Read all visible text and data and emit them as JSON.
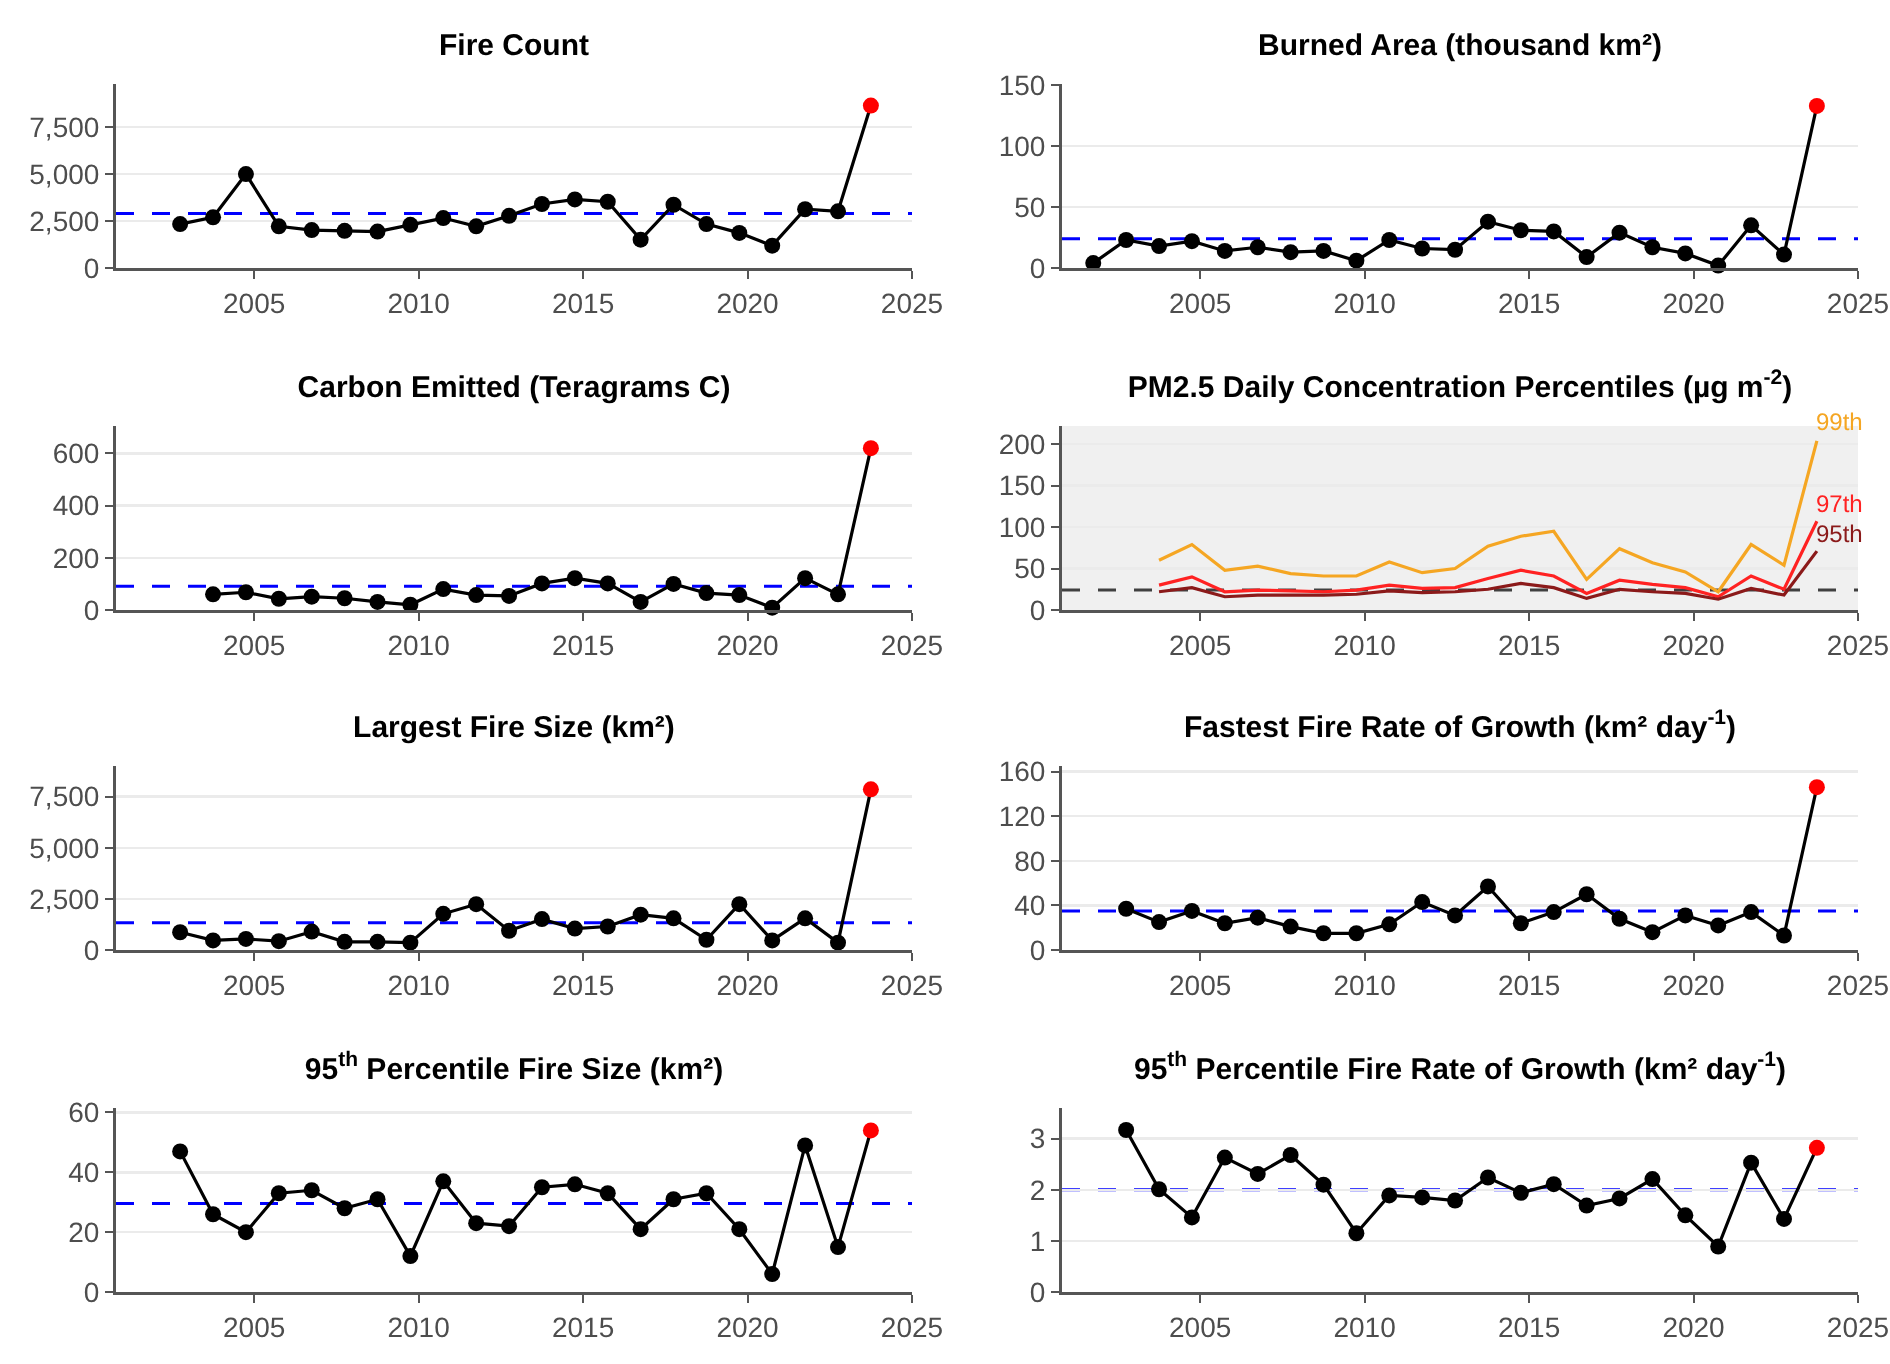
{
  "chart_data": [
    {
      "type": "line",
      "title": "Fire Count",
      "marker": "circle",
      "grid": "y",
      "legend": false,
      "xlim": [
        2000.8,
        2025
      ],
      "xticks": [
        2005,
        2010,
        2015,
        2020,
        2025
      ],
      "ylim": [
        0,
        9800
      ],
      "yticks": [
        0,
        {
          "value": 2500,
          "label": "2,500"
        },
        {
          "value": 5000,
          "label": "5,000"
        },
        {
          "value": 7500,
          "label": "7,500"
        }
      ],
      "ref_lines": [
        {
          "axis": "y",
          "value": 2900,
          "color": "#0000ff",
          "line_style": "dashed"
        }
      ],
      "series": [
        {
          "color": "#000000",
          "x": [
            2002.75,
            2003.75,
            2004.75,
            2005.75,
            2006.75,
            2007.75,
            2008.75,
            2009.75,
            2010.75,
            2011.75,
            2012.75,
            2013.75,
            2014.75,
            2015.75,
            2016.75,
            2017.75,
            2018.75,
            2019.75,
            2020.75,
            2021.75,
            2022.75,
            2023.75
          ],
          "values": [
            2340,
            2700,
            5000,
            2220,
            2020,
            1980,
            1940,
            2300,
            2660,
            2220,
            2780,
            3410,
            3650,
            3530,
            1510,
            3370,
            2340,
            1870,
            1190,
            3130,
            3020,
            8650
          ],
          "colors": [
            "#000000",
            "#000000",
            "#000000",
            "#000000",
            "#000000",
            "#000000",
            "#000000",
            "#000000",
            "#000000",
            "#000000",
            "#000000",
            "#000000",
            "#000000",
            "#000000",
            "#000000",
            "#000000",
            "#000000",
            "#000000",
            "#000000",
            "#000000",
            "#000000",
            "#ff0000"
          ]
        }
      ]
    },
    {
      "type": "line",
      "title": "Burned Area (thousand km²)",
      "marker": "circle",
      "grid": "y",
      "legend": false,
      "xlim": [
        2000.8,
        2025
      ],
      "xticks": [
        2005,
        2010,
        2015,
        2020,
        2025
      ],
      "ylim": [
        0,
        151
      ],
      "yticks": [
        0,
        50,
        100,
        150
      ],
      "ref_lines": [
        {
          "axis": "y",
          "value": 24,
          "color": "#0000ff",
          "line_style": "dashed"
        }
      ],
      "series": [
        {
          "color": "#000000",
          "x": [
            2001.75,
            2002.75,
            2003.75,
            2004.75,
            2005.75,
            2006.75,
            2007.75,
            2008.75,
            2009.75,
            2010.75,
            2011.75,
            2012.75,
            2013.75,
            2014.75,
            2015.75,
            2016.75,
            2017.75,
            2018.75,
            2019.75,
            2020.75,
            2021.75,
            2022.75,
            2023.75
          ],
          "values": [
            4,
            23,
            18,
            22,
            14,
            17,
            13,
            14,
            6,
            23,
            16,
            15,
            38,
            31,
            30,
            9,
            29,
            17,
            12,
            2,
            35,
            11,
            133
          ],
          "colors": [
            "#000000",
            "#000000",
            "#000000",
            "#000000",
            "#000000",
            "#000000",
            "#000000",
            "#000000",
            "#000000",
            "#000000",
            "#000000",
            "#000000",
            "#000000",
            "#000000",
            "#000000",
            "#000000",
            "#000000",
            "#000000",
            "#000000",
            "#000000",
            "#000000",
            "#000000",
            "#ff0000"
          ]
        }
      ]
    },
    {
      "type": "line",
      "title": "Carbon Emitted (Teragrams C)",
      "marker": "circle",
      "grid": "y",
      "legend": false,
      "xlim": [
        2000.8,
        2025
      ],
      "xticks": [
        2005,
        2010,
        2015,
        2020,
        2025
      ],
      "ylim": [
        0,
        705
      ],
      "yticks": [
        0,
        200,
        400,
        600
      ],
      "ref_lines": [
        {
          "axis": "y",
          "value": 91,
          "color": "#0000ff",
          "line_style": "dashed"
        }
      ],
      "series": [
        {
          "color": "#000000",
          "x": [
            2003.75,
            2004.75,
            2005.75,
            2006.75,
            2007.75,
            2008.75,
            2009.75,
            2010.75,
            2011.75,
            2012.75,
            2013.75,
            2014.75,
            2015.75,
            2016.75,
            2017.75,
            2018.75,
            2019.75,
            2020.75,
            2021.75,
            2022.75,
            2023.75
          ],
          "values": [
            60,
            68,
            43,
            51,
            45,
            31,
            20,
            80,
            57,
            54,
            102,
            122,
            102,
            31,
            100,
            65,
            57,
            9,
            122,
            60,
            620
          ],
          "colors": [
            "#000000",
            "#000000",
            "#000000",
            "#000000",
            "#000000",
            "#000000",
            "#000000",
            "#000000",
            "#000000",
            "#000000",
            "#000000",
            "#000000",
            "#000000",
            "#000000",
            "#000000",
            "#000000",
            "#000000",
            "#000000",
            "#000000",
            "#000000",
            "#ff0000"
          ]
        }
      ]
    },
    {
      "type": "line",
      "title": "PM2.5 Daily Concentration Percentiles (µg m$^{-2}$)",
      "marker": "none",
      "grid": "y",
      "legend": false,
      "xlim": [
        2000.8,
        2025
      ],
      "xticks": [
        2005,
        2010,
        2015,
        2020,
        2025
      ],
      "ylim": [
        0,
        222
      ],
      "yticks": [
        0,
        50,
        100,
        150,
        200
      ],
      "bands": [
        {
          "axis": "y",
          "from": 0,
          "to": 222,
          "color": "#f0f0f0"
        }
      ],
      "ref_lines": [
        {
          "axis": "y",
          "value": 24,
          "color": "#404040",
          "line_style": "dashed"
        }
      ],
      "series": [
        {
          "name": "99th",
          "color": "#f5a623",
          "x": [
            2003.75,
            2004.75,
            2005.75,
            2006.75,
            2007.75,
            2008.75,
            2009.75,
            2010.75,
            2011.75,
            2012.75,
            2013.75,
            2014.75,
            2015.75,
            2016.75,
            2017.75,
            2018.75,
            2019.75,
            2020.75,
            2021.75,
            2022.75,
            2023.75
          ],
          "values": [
            60,
            79,
            48,
            53,
            44,
            41,
            41,
            58,
            45,
            50,
            77,
            89,
            95,
            37,
            74,
            57,
            46,
            22,
            79,
            54,
            204
          ]
        },
        {
          "name": "97th",
          "color": "#ff2222",
          "x": [
            2003.75,
            2004.75,
            2005.75,
            2006.75,
            2007.75,
            2008.75,
            2009.75,
            2010.75,
            2011.75,
            2012.75,
            2013.75,
            2014.75,
            2015.75,
            2016.75,
            2017.75,
            2018.75,
            2019.75,
            2020.75,
            2021.75,
            2022.75,
            2023.75
          ],
          "values": [
            30,
            40,
            22,
            24,
            23,
            22,
            24,
            30,
            26,
            27,
            38,
            48,
            41,
            20,
            36,
            31,
            27,
            16,
            41,
            25,
            107
          ]
        },
        {
          "name": "95th",
          "color": "#8b1a1a",
          "x": [
            2003.75,
            2004.75,
            2005.75,
            2006.75,
            2007.75,
            2008.75,
            2009.75,
            2010.75,
            2011.75,
            2012.75,
            2013.75,
            2014.75,
            2015.75,
            2016.75,
            2017.75,
            2018.75,
            2019.75,
            2020.75,
            2021.75,
            2022.75,
            2023.75
          ],
          "values": [
            22,
            27,
            16,
            18,
            18,
            18,
            19,
            23,
            21,
            22,
            25,
            32,
            27,
            14,
            25,
            22,
            20,
            13,
            26,
            18,
            71
          ]
        }
      ]
    },
    {
      "type": "line",
      "title": "Largest Fire Size (km²)",
      "marker": "circle",
      "grid": "y",
      "legend": false,
      "xlim": [
        2000.8,
        2025
      ],
      "xticks": [
        2005,
        2010,
        2015,
        2020,
        2025
      ],
      "ylim": [
        0,
        9000
      ],
      "yticks": [
        0,
        {
          "value": 2500,
          "label": "2,500"
        },
        {
          "value": 5000,
          "label": "5,000"
        },
        {
          "value": 7500,
          "label": "7,500"
        }
      ],
      "ref_lines": [
        {
          "axis": "y",
          "value": 1330,
          "color": "#0000ff",
          "line_style": "dashed"
        }
      ],
      "series": [
        {
          "color": "#000000",
          "x": [
            2002.75,
            2003.75,
            2004.75,
            2005.75,
            2006.75,
            2007.75,
            2008.75,
            2009.75,
            2010.75,
            2011.75,
            2012.75,
            2013.75,
            2014.75,
            2015.75,
            2016.75,
            2017.75,
            2018.75,
            2019.75,
            2020.75,
            2021.75,
            2022.75,
            2023.75
          ],
          "values": [
            870,
            470,
            540,
            430,
            900,
            400,
            400,
            360,
            1770,
            2240,
            940,
            1510,
            1050,
            1150,
            1730,
            1550,
            500,
            2240,
            470,
            1550,
            360,
            7860
          ],
          "colors": [
            "#000000",
            "#000000",
            "#000000",
            "#000000",
            "#000000",
            "#000000",
            "#000000",
            "#000000",
            "#000000",
            "#000000",
            "#000000",
            "#000000",
            "#000000",
            "#000000",
            "#000000",
            "#000000",
            "#000000",
            "#000000",
            "#000000",
            "#000000",
            "#000000",
            "#ff0000"
          ]
        }
      ]
    },
    {
      "type": "line",
      "title": "Fastest Fire Rate of Growth (km² day$^{-1}$)",
      "marker": "circle",
      "grid": "y",
      "legend": false,
      "xlim": [
        2000.8,
        2025
      ],
      "xticks": [
        2005,
        2010,
        2015,
        2020,
        2025
      ],
      "ylim": [
        0,
        165
      ],
      "yticks": [
        0,
        40,
        80,
        120,
        160
      ],
      "ref_lines": [
        {
          "axis": "y",
          "value": 35,
          "color": "#0000ff",
          "line_style": "dashed"
        }
      ],
      "series": [
        {
          "color": "#000000",
          "x": [
            2002.75,
            2003.75,
            2004.75,
            2005.75,
            2006.75,
            2007.75,
            2008.75,
            2009.75,
            2010.75,
            2011.75,
            2012.75,
            2013.75,
            2014.75,
            2015.75,
            2016.75,
            2017.75,
            2018.75,
            2019.75,
            2020.75,
            2021.75,
            2022.75,
            2023.75
          ],
          "values": [
            37,
            25,
            35,
            24,
            29,
            21,
            15,
            15,
            23,
            43,
            31,
            57,
            24,
            34,
            50,
            28,
            16,
            31,
            22,
            34,
            13,
            146
          ],
          "colors": [
            "#000000",
            "#000000",
            "#000000",
            "#000000",
            "#000000",
            "#000000",
            "#000000",
            "#000000",
            "#000000",
            "#000000",
            "#000000",
            "#000000",
            "#000000",
            "#000000",
            "#000000",
            "#000000",
            "#000000",
            "#000000",
            "#000000",
            "#000000",
            "#000000",
            "#ff0000"
          ]
        }
      ]
    },
    {
      "type": "line",
      "title": "95$^{th}$ Percentile Fire Size (km²)",
      "marker": "circle",
      "grid": "y",
      "legend": false,
      "xlim": [
        2000.8,
        2025
      ],
      "xticks": [
        2005,
        2010,
        2015,
        2020,
        2025
      ],
      "ylim": [
        0,
        61.5
      ],
      "yticks": [
        0,
        20,
        40,
        60
      ],
      "ref_lines": [
        {
          "axis": "y",
          "value": 29.6,
          "color": "#0000ff",
          "line_style": "dashed"
        }
      ],
      "series": [
        {
          "color": "#000000",
          "x": [
            2002.75,
            2003.75,
            2004.75,
            2005.75,
            2006.75,
            2007.75,
            2008.75,
            2009.75,
            2010.75,
            2011.75,
            2012.75,
            2013.75,
            2014.75,
            2015.75,
            2016.75,
            2017.75,
            2018.75,
            2019.75,
            2020.75,
            2021.75,
            2022.75,
            2023.75
          ],
          "values": [
            47,
            26,
            20,
            33,
            34,
            28,
            31,
            12,
            37,
            23,
            22,
            35,
            36,
            33,
            21,
            31,
            33,
            21,
            6,
            49,
            15,
            54
          ],
          "colors": [
            "#000000",
            "#000000",
            "#000000",
            "#000000",
            "#000000",
            "#000000",
            "#000000",
            "#000000",
            "#000000",
            "#000000",
            "#000000",
            "#000000",
            "#000000",
            "#000000",
            "#000000",
            "#000000",
            "#000000",
            "#000000",
            "#000000",
            "#000000",
            "#000000",
            "#ff0000"
          ]
        }
      ]
    },
    {
      "type": "line",
      "title": "95$^{th}$ Percentile Fire Rate of Growth (km² day$^{-1}$)",
      "marker": "circle",
      "grid": "y",
      "legend": false,
      "xlim": [
        2000.8,
        2025
      ],
      "xticks": [
        2005,
        2010,
        2015,
        2020,
        2025
      ],
      "ylim": [
        0,
        3.6
      ],
      "yticks": [
        0,
        1,
        2,
        3
      ],
      "ref_lines": [
        {
          "axis": "y",
          "value": 2.0,
          "color": "#0000ff",
          "line_style": "dashed"
        }
      ],
      "series": [
        {
          "color": "#000000",
          "x": [
            2002.75,
            2003.75,
            2004.75,
            2005.75,
            2006.75,
            2007.75,
            2008.75,
            2009.75,
            2010.75,
            2011.75,
            2012.75,
            2013.75,
            2014.75,
            2015.75,
            2016.75,
            2017.75,
            2018.75,
            2019.75,
            2020.75,
            2021.75,
            2022.75,
            2023.75
          ],
          "values": [
            3.17,
            2.01,
            1.46,
            2.63,
            2.31,
            2.68,
            2.1,
            1.15,
            1.89,
            1.85,
            1.79,
            2.24,
            1.94,
            2.11,
            1.69,
            1.83,
            2.21,
            1.5,
            0.89,
            2.53,
            1.43,
            2.82
          ],
          "colors": [
            "#000000",
            "#000000",
            "#000000",
            "#000000",
            "#000000",
            "#000000",
            "#000000",
            "#000000",
            "#000000",
            "#000000",
            "#000000",
            "#000000",
            "#000000",
            "#000000",
            "#000000",
            "#000000",
            "#000000",
            "#000000",
            "#000000",
            "#000000",
            "#000000",
            "#ff0000"
          ]
        }
      ]
    }
  ]
}
